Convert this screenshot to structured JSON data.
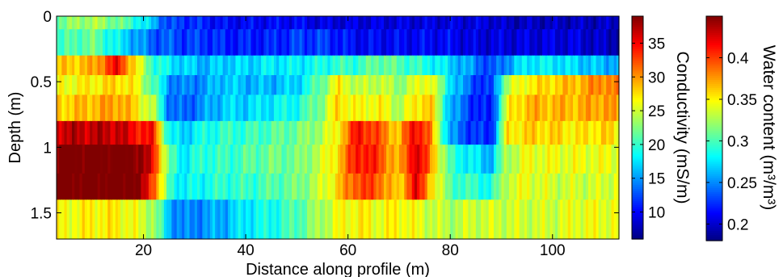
{
  "chart_data": {
    "type": "heatmap",
    "xlabel": "Distance along profile (m)",
    "ylabel": "Depth (m)",
    "xlim": [
      3,
      113
    ],
    "ylim": [
      0,
      1.7
    ],
    "y_reversed": true,
    "xticks": [
      20,
      40,
      60,
      80,
      100
    ],
    "yticks": [
      0,
      0.5,
      1,
      1.5
    ],
    "colormap": "jet",
    "grid": false,
    "layer_boundaries_depth": [
      0,
      0.1,
      0.3,
      0.45,
      0.6,
      0.8,
      0.98,
      1.2,
      1.4,
      1.7
    ],
    "sample_x": [
      3,
      10,
      15,
      18,
      22,
      25,
      28,
      32,
      36,
      40,
      45,
      50,
      55,
      58,
      62,
      66,
      70,
      73,
      76,
      80,
      84,
      88,
      91,
      95,
      100,
      105,
      110,
      113
    ],
    "layers": [
      {
        "depth": [
          0,
          0.1
        ],
        "conductivity": [
          22,
          24,
          22,
          20,
          16,
          12,
          12,
          11,
          10,
          10,
          10,
          10,
          9,
          9,
          9,
          9,
          9,
          9,
          9,
          9,
          9,
          9,
          8,
          8,
          8,
          8,
          8,
          8
        ]
      },
      {
        "depth": [
          0.1,
          0.3
        ],
        "conductivity": [
          20,
          22,
          18,
          16,
          13,
          13,
          12,
          12,
          11,
          11,
          11,
          12,
          12,
          11,
          10,
          10,
          10,
          10,
          10,
          10,
          9,
          9,
          9,
          9,
          9,
          9,
          8,
          8
        ]
      },
      {
        "depth": [
          0.3,
          0.45
        ],
        "conductivity": [
          28,
          29,
          35,
          28,
          20,
          18,
          17,
          16,
          17,
          17,
          18,
          18,
          19,
          20,
          20,
          22,
          21,
          20,
          19,
          17,
          15,
          12,
          15,
          18,
          18,
          17,
          16,
          16
        ]
      },
      {
        "depth": [
          0.45,
          0.6
        ],
        "conductivity": [
          26,
          27,
          28,
          27,
          21,
          15,
          14,
          15,
          17,
          16,
          16,
          17,
          22,
          27,
          24,
          25,
          23,
          25,
          27,
          18,
          13,
          11,
          24,
          27,
          28,
          29,
          31,
          30
        ]
      },
      {
        "depth": [
          0.6,
          0.8
        ],
        "conductivity": [
          28,
          29,
          30,
          28,
          24,
          14,
          13,
          15,
          17,
          17,
          18,
          19,
          23,
          28,
          26,
          27,
          24,
          27,
          29,
          16,
          12,
          10,
          26,
          29,
          29,
          29,
          30,
          29
        ]
      },
      {
        "depth": [
          0.8,
          0.98
        ],
        "conductivity": [
          37,
          37,
          37,
          35,
          34,
          18,
          17,
          19,
          20,
          20,
          21,
          22,
          24,
          27,
          35,
          32,
          28,
          36,
          31,
          15,
          12,
          11,
          27,
          28,
          28,
          27,
          28,
          27
        ]
      },
      {
        "depth": [
          0.98,
          1.2
        ],
        "conductivity": [
          40,
          40,
          40,
          40,
          35,
          21,
          18,
          20,
          20,
          21,
          22,
          22,
          25,
          28,
          35,
          33,
          28,
          37,
          31,
          20,
          18,
          16,
          24,
          26,
          26,
          26,
          26,
          26
        ]
      },
      {
        "depth": [
          1.2,
          1.4
        ],
        "conductivity": [
          40,
          40,
          40,
          40,
          33,
          20,
          18,
          19,
          20,
          20,
          21,
          22,
          25,
          28,
          33,
          32,
          27,
          36,
          29,
          21,
          20,
          19,
          25,
          26,
          25,
          25,
          25,
          26
        ]
      },
      {
        "depth": [
          1.4,
          1.7
        ],
        "conductivity": [
          26,
          27,
          27,
          26,
          24,
          16,
          14,
          15,
          16,
          18,
          19,
          21,
          24,
          26,
          27,
          26,
          27,
          26,
          25,
          24,
          25,
          25,
          25,
          25,
          25,
          26,
          26,
          26
        ]
      }
    ],
    "colorbars": [
      {
        "label": "Conductivity (mS/m)",
        "range": [
          6,
          39
        ],
        "ticks": [
          10,
          15,
          20,
          25,
          30,
          35
        ]
      },
      {
        "label": "Water content (m³/m³)",
        "range": [
          0.18,
          0.45
        ],
        "ticks": [
          0.2,
          0.25,
          0.3,
          0.35,
          0.4
        ],
        "reversed": false
      }
    ]
  }
}
